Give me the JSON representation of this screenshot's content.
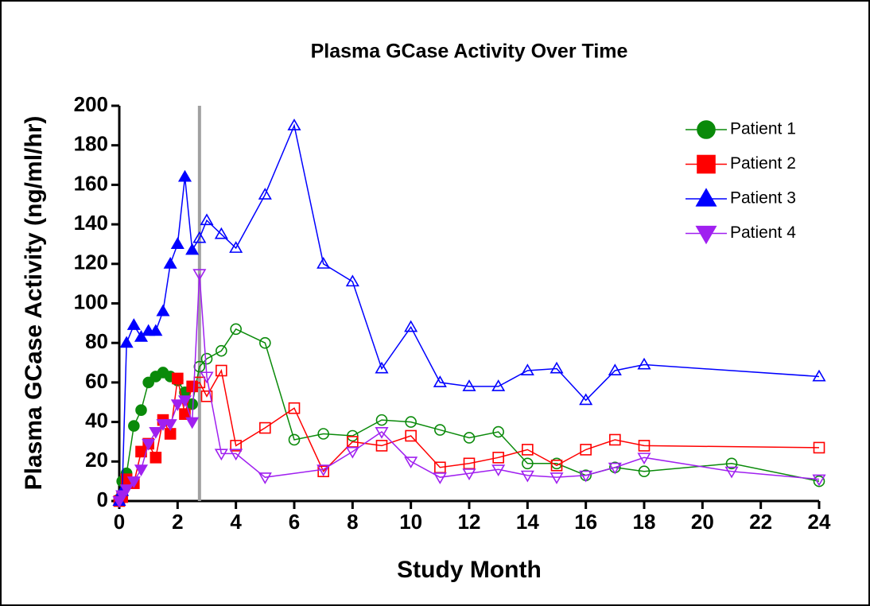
{
  "chart_data": {
    "type": "line",
    "title": "Plasma GCase Activity Over Time",
    "x_label": "Study Month",
    "y_label": "Plasma GCase Activity (ng/ml/hr)",
    "xlim": [
      0,
      24
    ],
    "ylim": [
      0,
      200
    ],
    "xticks": [
      0,
      2,
      4,
      6,
      8,
      10,
      12,
      14,
      16,
      18,
      20,
      22,
      24
    ],
    "yticks": [
      0,
      20,
      40,
      60,
      80,
      100,
      120,
      140,
      160,
      180,
      200
    ],
    "vline": 2.75,
    "vline_color": "#a0a0a0",
    "legend": "upper right",
    "series": [
      {
        "name": "Patient 1",
        "color": "#0a8a0a",
        "marker": "circle",
        "x": [
          0,
          0.1,
          0.25,
          0.5,
          0.75,
          1,
          1.25,
          1.5,
          1.75,
          2,
          2.25,
          2.5,
          2.75,
          3,
          3.5,
          4,
          5,
          6,
          7,
          8,
          9,
          10,
          11,
          12,
          13,
          14,
          15,
          16,
          17,
          18,
          21,
          24
        ],
        "values": [
          1,
          10,
          14,
          38,
          46,
          60,
          63,
          65,
          63,
          61,
          55,
          49,
          68,
          72,
          76,
          87,
          80,
          31,
          34,
          33,
          41,
          40,
          36,
          32,
          35,
          19,
          19,
          13,
          17,
          15,
          19,
          10
        ]
      },
      {
        "name": "Patient 2",
        "color": "#ff0000",
        "marker": "square",
        "x": [
          0,
          0.1,
          0.25,
          0.5,
          0.75,
          1,
          1.25,
          1.5,
          1.75,
          2,
          2.25,
          2.5,
          2.75,
          3,
          3.5,
          4,
          5,
          6,
          7,
          8,
          9,
          10,
          11,
          12,
          13,
          14,
          15,
          16,
          17,
          18,
          24
        ],
        "values": [
          0,
          2,
          11,
          9,
          25,
          29,
          22,
          41,
          34,
          62,
          44,
          58,
          60,
          53,
          66,
          28,
          37,
          47,
          15,
          30,
          28,
          33,
          17,
          19,
          22,
          26,
          18,
          26,
          31,
          28,
          27
        ]
      },
      {
        "name": "Patient 3",
        "color": "#0000ff",
        "marker": "triangle-up",
        "x": [
          0,
          0.1,
          0.25,
          0.5,
          0.75,
          1,
          1.25,
          1.5,
          1.75,
          2,
          2.25,
          2.5,
          2.75,
          3,
          3.5,
          4,
          5,
          6,
          7,
          8,
          9,
          10,
          11,
          12,
          13,
          14,
          15,
          16,
          17,
          18,
          24
        ],
        "values": [
          0,
          5,
          80,
          89,
          83,
          86,
          86,
          96,
          120,
          130,
          164,
          127,
          133,
          142,
          135,
          128,
          155,
          190,
          120,
          111,
          67,
          88,
          60,
          58,
          58,
          66,
          67,
          51,
          66,
          69,
          63
        ]
      },
      {
        "name": "Patient 4",
        "color": "#a020f0",
        "marker": "triangle-down",
        "x": [
          0,
          0.1,
          0.25,
          0.5,
          0.75,
          1,
          1.25,
          1.5,
          1.75,
          2,
          2.25,
          2.5,
          2.75,
          3,
          3.5,
          4,
          5,
          7,
          8,
          9,
          10,
          11,
          12,
          13,
          14,
          15,
          16,
          17,
          18,
          21,
          24
        ],
        "values": [
          0,
          3,
          6,
          10,
          16,
          29,
          35,
          39,
          39,
          49,
          51,
          40,
          115,
          63,
          24,
          24,
          12,
          16,
          25,
          35,
          20,
          12,
          14,
          16,
          13,
          12,
          13,
          17,
          22,
          15,
          11
        ]
      }
    ]
  }
}
